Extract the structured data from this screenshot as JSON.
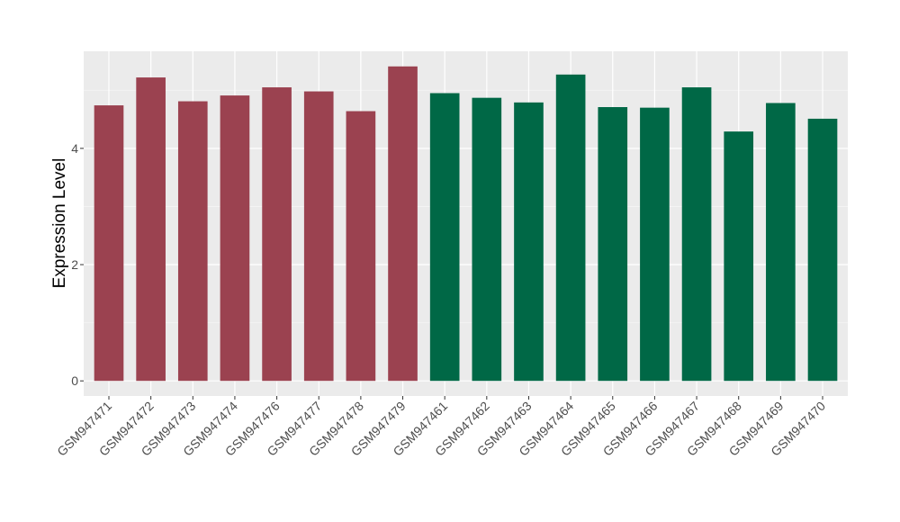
{
  "chart_data": {
    "type": "bar",
    "y_label": "Expression Level",
    "categories": [
      "GSM947471",
      "GSM947472",
      "GSM947473",
      "GSM947474",
      "GSM947476",
      "GSM947477",
      "GSM947478",
      "GSM947479",
      "GSM947461",
      "GSM947462",
      "GSM947463",
      "GSM947464",
      "GSM947465",
      "GSM947466",
      "GSM947467",
      "GSM947468",
      "GSM947469",
      "GSM947470"
    ],
    "values": [
      4.74,
      5.22,
      4.81,
      4.91,
      5.05,
      4.98,
      4.64,
      5.41,
      4.95,
      4.87,
      4.79,
      5.27,
      4.71,
      4.7,
      5.05,
      4.29,
      4.78,
      4.51
    ],
    "colors": [
      "#9b4250",
      "#9b4250",
      "#9b4250",
      "#9b4250",
      "#9b4250",
      "#9b4250",
      "#9b4250",
      "#9b4250",
      "#006846",
      "#006846",
      "#006846",
      "#006846",
      "#006846",
      "#006846",
      "#006846",
      "#006846",
      "#006846",
      "#006846"
    ],
    "ylim": [
      -0.26,
      5.67
    ],
    "yticks": [
      0,
      2,
      4
    ],
    "grid": true
  }
}
